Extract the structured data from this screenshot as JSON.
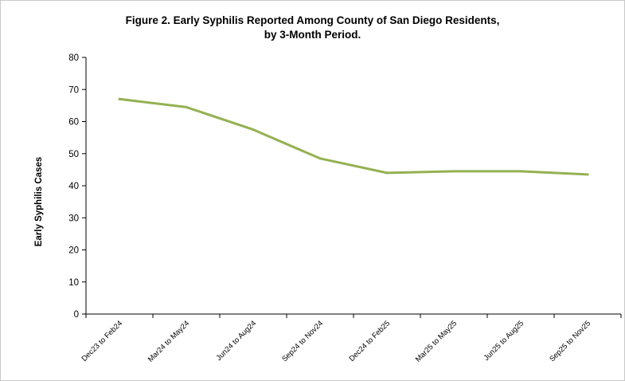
{
  "chart_data": {
    "type": "line",
    "title_line1": "Figure 2. Early Syphilis Reported Among County of San Diego Residents,",
    "title_line2": "by 3-Month Period.",
    "xlabel": "",
    "ylabel": "Early Syphilis Cases",
    "ylim": [
      0,
      80
    ],
    "yticks": [
      "0",
      "10",
      "20",
      "30",
      "40",
      "50",
      "60",
      "70",
      "80"
    ],
    "grid": false,
    "legend": "none",
    "categories": [
      "Dec23 to Feb24",
      "Mar24 to May24",
      "Jun24 to Aug24",
      "Sep24 to Nov24",
      "Dec24 to Feb25",
      "Mar25 to May25",
      "Jun25 to Aug25",
      "Sep25 to Nov25"
    ],
    "series": [
      {
        "values": [
          67,
          64.5,
          57.5,
          48.5,
          44,
          44.5,
          44.5,
          43.5
        ],
        "color": "#94b153"
      }
    ]
  }
}
